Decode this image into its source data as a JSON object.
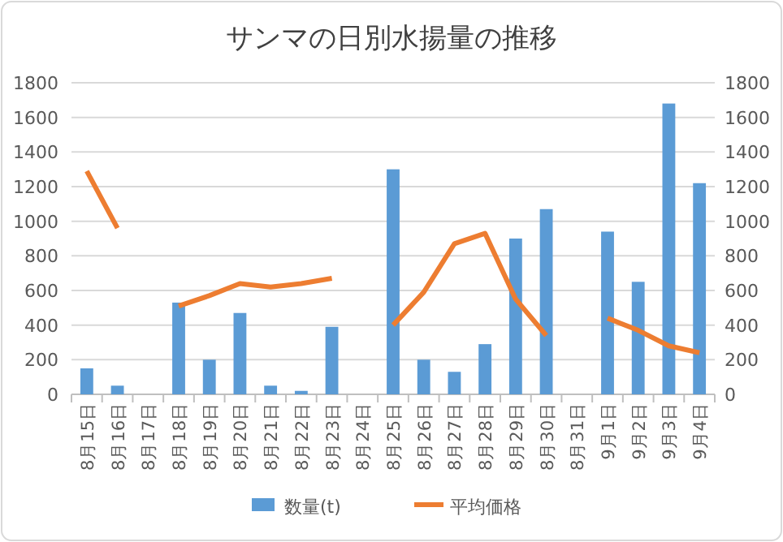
{
  "chart_data": {
    "type": "bar",
    "title": "サンマの日別水揚量の推移",
    "categories": [
      "8月15日",
      "8月16日",
      "8月17日",
      "8月18日",
      "8月19日",
      "8月20日",
      "8月21日",
      "8月22日",
      "8月23日",
      "8月24日",
      "8月25日",
      "8月26日",
      "8月27日",
      "8月28日",
      "8月29日",
      "8月30日",
      "8月31日",
      "9月1日",
      "9月2日",
      "9月3日",
      "9月4日"
    ],
    "series": [
      {
        "name": "数量(t)",
        "color": "#5b9bd5",
        "values": [
          150,
          50,
          null,
          530,
          200,
          470,
          50,
          20,
          390,
          null,
          1300,
          200,
          130,
          290,
          900,
          1070,
          null,
          940,
          650,
          1680,
          1220
        ]
      },
      {
        "name": "平均価格",
        "type": "line",
        "color": "#ed7d31",
        "values": [
          1290,
          960,
          null,
          510,
          570,
          640,
          620,
          640,
          670,
          null,
          400,
          590,
          870,
          930,
          550,
          340,
          null,
          440,
          370,
          280,
          240
        ]
      }
    ],
    "ylim": [
      0,
      1800
    ],
    "yticks": [
      0,
      200,
      400,
      600,
      800,
      1000,
      1200,
      1400,
      1600,
      1800
    ],
    "y2lim": [
      0,
      1800
    ],
    "y2ticks": [
      0,
      200,
      400,
      600,
      800,
      1000,
      1200,
      1400,
      1600,
      1800
    ],
    "grid": "y",
    "legend": "bottom",
    "marker": "none",
    "line_style": "solid"
  }
}
